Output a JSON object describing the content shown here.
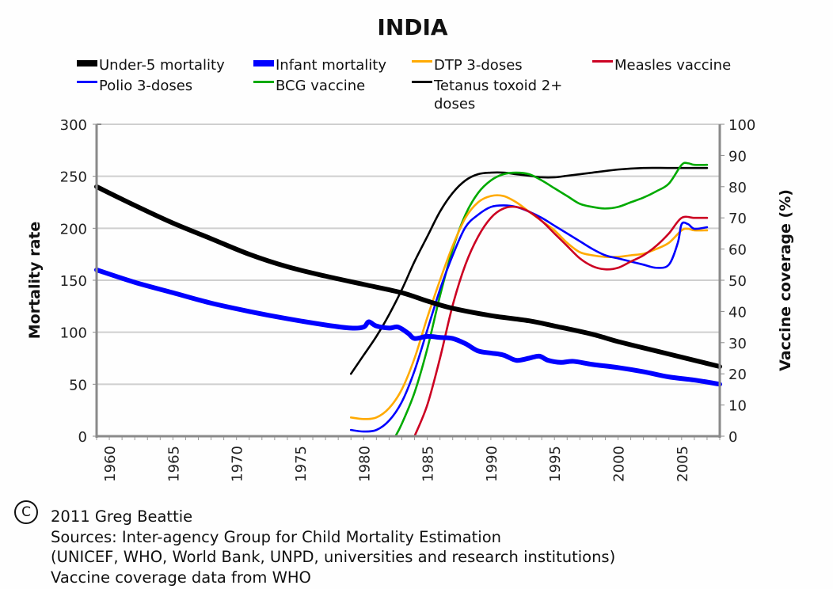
{
  "chart_data": {
    "type": "line",
    "title": "INDIA",
    "xlabel": "",
    "ylabel": "Mortality rate",
    "y2label": "Vaccine coverage (%)",
    "xlim": [
      1959,
      2008
    ],
    "ylim": [
      0,
      300
    ],
    "y2lim": [
      0,
      100
    ],
    "x_ticks": [
      "1960",
      "1965",
      "1970",
      "1975",
      "1980",
      "1985",
      "1990",
      "1995",
      "2000",
      "2005"
    ],
    "y_ticks": [
      "0",
      "50",
      "100",
      "150",
      "200",
      "250",
      "300"
    ],
    "y2_ticks": [
      "0",
      "10",
      "20",
      "30",
      "40",
      "50",
      "60",
      "70",
      "80",
      "90",
      "100"
    ],
    "grid": true,
    "legend_position": "top",
    "series": [
      {
        "name": "Under-5 mortality",
        "axis": "left",
        "color": "#000000",
        "weight": "thick",
        "points": [
          [
            1959,
            240
          ],
          [
            1962,
            222
          ],
          [
            1965,
            205
          ],
          [
            1968,
            190
          ],
          [
            1971,
            175
          ],
          [
            1974,
            163
          ],
          [
            1977,
            154
          ],
          [
            1980,
            146
          ],
          [
            1983,
            138
          ],
          [
            1985,
            130
          ],
          [
            1987,
            123
          ],
          [
            1990,
            116
          ],
          [
            1993,
            111
          ],
          [
            1995,
            106
          ],
          [
            1998,
            98
          ],
          [
            2000,
            91
          ],
          [
            2003,
            82
          ],
          [
            2005,
            76
          ],
          [
            2008,
            67
          ]
        ]
      },
      {
        "name": "Infant mortality",
        "axis": "left",
        "color": "#0000ff",
        "weight": "thick",
        "points": [
          [
            1959,
            160
          ],
          [
            1962,
            148
          ],
          [
            1965,
            138
          ],
          [
            1968,
            128
          ],
          [
            1971,
            120
          ],
          [
            1974,
            113
          ],
          [
            1977,
            107
          ],
          [
            1979,
            104
          ],
          [
            1980,
            105
          ],
          [
            1980.4,
            110
          ],
          [
            1981,
            106
          ],
          [
            1982,
            104
          ],
          [
            1982.7,
            105
          ],
          [
            1983.5,
            99
          ],
          [
            1984,
            94
          ],
          [
            1985,
            96
          ],
          [
            1986,
            95
          ],
          [
            1987,
            94
          ],
          [
            1988,
            89
          ],
          [
            1989,
            82
          ],
          [
            1990,
            80
          ],
          [
            1991,
            78
          ],
          [
            1992,
            73
          ],
          [
            1993,
            75
          ],
          [
            1993.8,
            77
          ],
          [
            1994.5,
            73
          ],
          [
            1995.5,
            71
          ],
          [
            1996.5,
            72
          ],
          [
            1998,
            69
          ],
          [
            2000,
            66
          ],
          [
            2002,
            62
          ],
          [
            2004,
            57
          ],
          [
            2006,
            54
          ],
          [
            2008,
            50
          ]
        ]
      },
      {
        "name": "DTP 3-doses",
        "axis": "right",
        "color": "#ffaa00",
        "weight": "thin",
        "points": [
          [
            1979,
            6
          ],
          [
            1980,
            5.5
          ],
          [
            1981,
            6
          ],
          [
            1982,
            9
          ],
          [
            1983,
            15
          ],
          [
            1984,
            25
          ],
          [
            1985,
            38
          ],
          [
            1986,
            50
          ],
          [
            1987,
            61
          ],
          [
            1988,
            70
          ],
          [
            1989,
            75
          ],
          [
            1990,
            77
          ],
          [
            1991,
            77
          ],
          [
            1992,
            75
          ],
          [
            1993,
            72
          ],
          [
            1994,
            69
          ],
          [
            1995,
            66
          ],
          [
            1996,
            62
          ],
          [
            1997,
            59
          ],
          [
            1998,
            58
          ],
          [
            1999,
            57.5
          ],
          [
            2000,
            57.5
          ],
          [
            2001,
            58
          ],
          [
            2002,
            58.5
          ],
          [
            2003,
            60
          ],
          [
            2004,
            62
          ],
          [
            2005,
            66
          ],
          [
            2005.5,
            66.5
          ],
          [
            2006,
            66
          ],
          [
            2007,
            66
          ]
        ]
      },
      {
        "name": "Measles vaccine",
        "axis": "right",
        "color": "#cc0022",
        "weight": "thin",
        "points": [
          [
            1984,
            0
          ],
          [
            1985,
            10
          ],
          [
            1986,
            25
          ],
          [
            1987,
            42
          ],
          [
            1988,
            55
          ],
          [
            1989,
            64
          ],
          [
            1990,
            70
          ],
          [
            1991,
            73
          ],
          [
            1992,
            73.5
          ],
          [
            1993,
            72
          ],
          [
            1994,
            69
          ],
          [
            1995,
            65
          ],
          [
            1996,
            61
          ],
          [
            1997,
            57
          ],
          [
            1998,
            54.5
          ],
          [
            1999,
            53.5
          ],
          [
            2000,
            54
          ],
          [
            2001,
            56
          ],
          [
            2002,
            58
          ],
          [
            2003,
            61
          ],
          [
            2004,
            65
          ],
          [
            2005,
            70
          ],
          [
            2006,
            70
          ],
          [
            2007,
            70
          ]
        ]
      },
      {
        "name": "Polio 3-doses",
        "axis": "right",
        "color": "#0000ff",
        "weight": "thin",
        "points": [
          [
            1979,
            2
          ],
          [
            1980,
            1.5
          ],
          [
            1981,
            2
          ],
          [
            1982,
            5
          ],
          [
            1983,
            11
          ],
          [
            1984,
            21
          ],
          [
            1985,
            34
          ],
          [
            1986,
            47
          ],
          [
            1987,
            58
          ],
          [
            1988,
            67
          ],
          [
            1989,
            71
          ],
          [
            1990,
            73.5
          ],
          [
            1991,
            74
          ],
          [
            1992,
            73.5
          ],
          [
            1993,
            72
          ],
          [
            1994,
            70
          ],
          [
            1995,
            67.5
          ],
          [
            1996,
            65
          ],
          [
            1997,
            62.5
          ],
          [
            1998,
            60
          ],
          [
            1999,
            58
          ],
          [
            2000,
            57
          ],
          [
            2001,
            56
          ],
          [
            2002,
            55
          ],
          [
            2003,
            54
          ],
          [
            2004,
            55
          ],
          [
            2004.7,
            62
          ],
          [
            2005,
            68
          ],
          [
            2005.5,
            68
          ],
          [
            2006,
            66.5
          ],
          [
            2007,
            67
          ]
        ]
      },
      {
        "name": "BCG vaccine",
        "axis": "right",
        "color": "#00aa00",
        "weight": "thin",
        "points": [
          [
            1982.5,
            0
          ],
          [
            1983,
            4
          ],
          [
            1984,
            14
          ],
          [
            1985,
            28
          ],
          [
            1986,
            45
          ],
          [
            1987,
            60
          ],
          [
            1988,
            71
          ],
          [
            1989,
            78
          ],
          [
            1990,
            82
          ],
          [
            1991,
            84
          ],
          [
            1992,
            84.5
          ],
          [
            1993,
            84
          ],
          [
            1994,
            82
          ],
          [
            1995,
            79.5
          ],
          [
            1996,
            77
          ],
          [
            1997,
            74.5
          ],
          [
            1998,
            73.5
          ],
          [
            1999,
            73
          ],
          [
            2000,
            73.5
          ],
          [
            2001,
            75
          ],
          [
            2002,
            76.5
          ],
          [
            2003,
            78.5
          ],
          [
            2004,
            81
          ],
          [
            2005,
            87
          ],
          [
            2005.5,
            87.5
          ],
          [
            2006,
            87
          ],
          [
            2007,
            87
          ]
        ]
      },
      {
        "name": "Tetanus toxoid 2+ doses",
        "axis": "right",
        "color": "#000000",
        "weight": "thin",
        "points": [
          [
            1979,
            20
          ],
          [
            1980,
            26
          ],
          [
            1981,
            32
          ],
          [
            1982,
            39
          ],
          [
            1983,
            47
          ],
          [
            1984,
            56
          ],
          [
            1985,
            64
          ],
          [
            1986,
            72
          ],
          [
            1987,
            78
          ],
          [
            1988,
            82
          ],
          [
            1989,
            84
          ],
          [
            1990,
            84.5
          ],
          [
            1991,
            84.5
          ],
          [
            1992,
            84
          ],
          [
            1993,
            83.5
          ],
          [
            1994,
            83
          ],
          [
            1995,
            83
          ],
          [
            1996,
            83.5
          ],
          [
            1997,
            84
          ],
          [
            1998,
            84.5
          ],
          [
            2000,
            85.5
          ],
          [
            2002,
            86
          ],
          [
            2004,
            86
          ],
          [
            2006,
            86
          ],
          [
            2007,
            86
          ]
        ]
      }
    ]
  },
  "legend": {
    "items": [
      {
        "label": "Under-5 mortality",
        "color": "#000000"
      },
      {
        "label": "Infant mortality",
        "color": "#0000ff"
      },
      {
        "label": "DTP 3-doses",
        "color": "#ffaa00"
      },
      {
        "label": "Measles vaccine",
        "color": "#cc0022"
      },
      {
        "label": "Polio 3-doses",
        "color": "#0000ff"
      },
      {
        "label": "BCG vaccine",
        "color": "#00aa00"
      },
      {
        "label": "Tetanus toxoid 2+",
        "color": "#000000"
      }
    ],
    "tetanus_line2": "doses"
  },
  "credits": {
    "copyright_symbol": "C",
    "line1": "2011 Greg Beattie",
    "line2": "Sources: Inter-agency Group for Child Mortality Estimation",
    "line3": "(UNICEF, WHO, World Bank, UNPD, universities and research institutions)",
    "line4": "Vaccine coverage data from WHO"
  }
}
